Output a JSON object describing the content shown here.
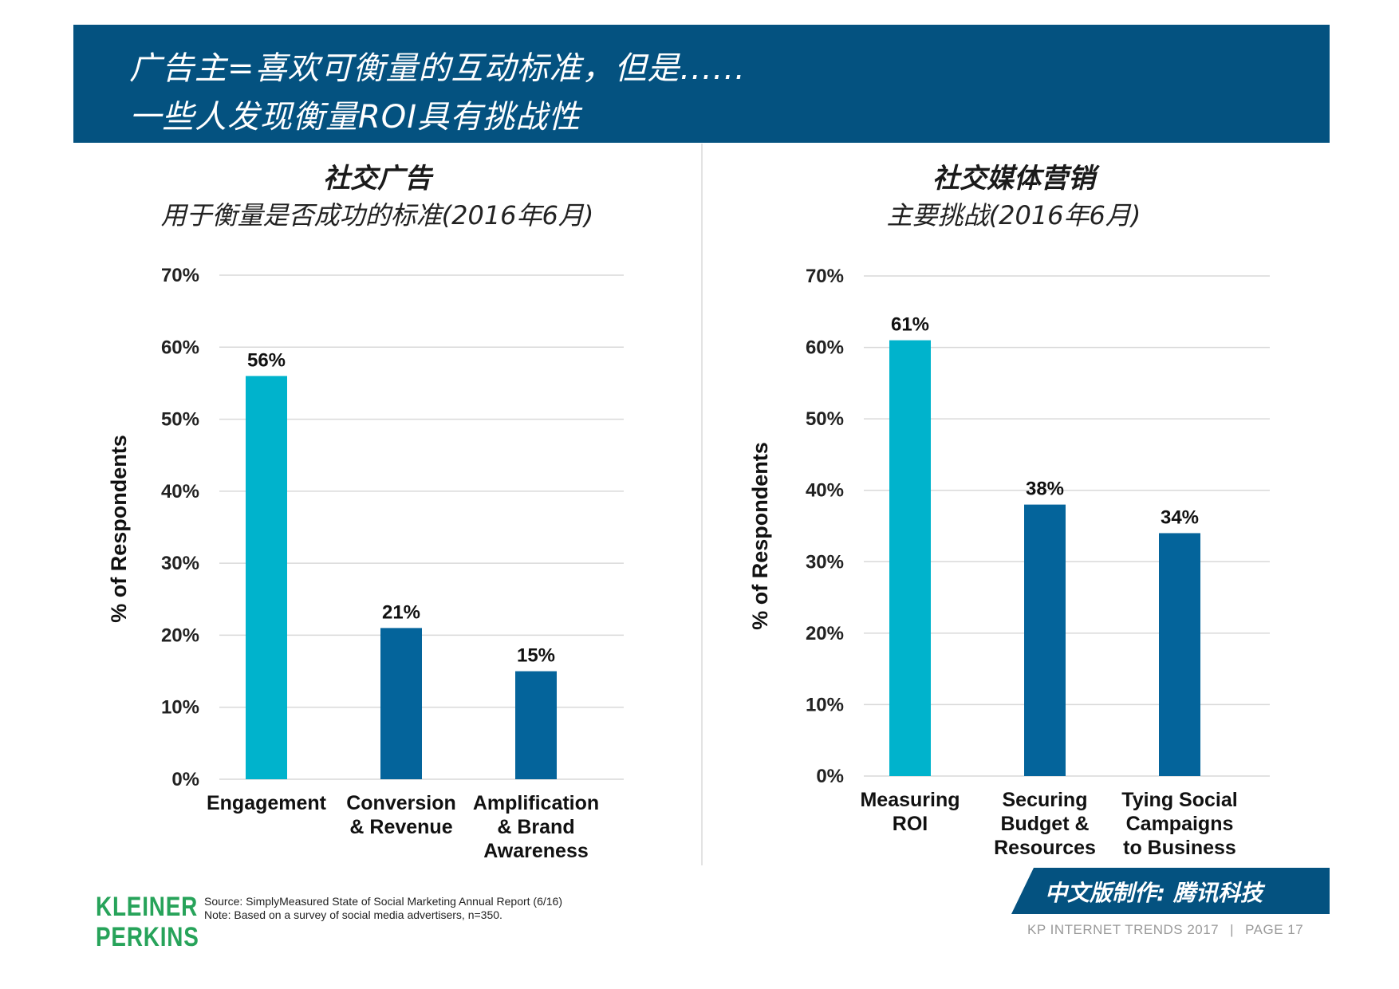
{
  "header": {
    "line1": "广告主=喜欢可衡量的互动标准，但是......",
    "line2": "一些人发现衡量ROI具有挑战性"
  },
  "colors": {
    "header_bg": "#045280",
    "highlight_bar": "#00B3CC",
    "standard_bar": "#04649B",
    "logo_green": "#27A35A",
    "gridline": "#D9D9D9"
  },
  "chart_data": [
    {
      "type": "bar",
      "title": "社交广告",
      "subtitle": "用于衡量是否成功的标准(2016年6月)",
      "categories": [
        [
          "Engagement"
        ],
        [
          "Conversion",
          "& Revenue"
        ],
        [
          "Amplification",
          "& Brand",
          "Awareness"
        ]
      ],
      "values": [
        56,
        21,
        15
      ],
      "value_labels": [
        "56%",
        "21%",
        "15%"
      ],
      "highlight": [
        true,
        false,
        false
      ],
      "ylabel": "% of Respondents",
      "ylim": [
        0,
        70
      ],
      "yticks": [
        "0%",
        "10%",
        "20%",
        "30%",
        "40%",
        "50%",
        "60%",
        "70%"
      ],
      "grid": true
    },
    {
      "type": "bar",
      "title": "社交媒体营销",
      "subtitle": "主要挑战(2016年6月)",
      "categories": [
        [
          "Measuring",
          "ROI"
        ],
        [
          "Securing",
          "Budget &",
          "Resources"
        ],
        [
          "Tying Social",
          "Campaigns",
          "to Business"
        ]
      ],
      "values": [
        61,
        38,
        34
      ],
      "value_labels": [
        "61%",
        "38%",
        "34%"
      ],
      "highlight": [
        true,
        false,
        false
      ],
      "ylabel": "% of Respondents",
      "ylim": [
        0,
        70
      ],
      "yticks": [
        "0%",
        "10%",
        "20%",
        "30%",
        "40%",
        "50%",
        "60%",
        "70%"
      ],
      "grid": true
    }
  ],
  "footer": {
    "logo_line1": "KLEINER",
    "logo_line2": "PERKINS",
    "source_line1": "Source: SimplyMeasured State of Social Marketing Annual Report (6/16)",
    "source_line2": "Note: Based on a survey of social media advertisers, n=350.",
    "credit_text": "中文版制作: 腾讯科技",
    "report_name": "KP INTERNET TRENDS 2017",
    "separator": "|",
    "page_label": "PAGE 17"
  }
}
